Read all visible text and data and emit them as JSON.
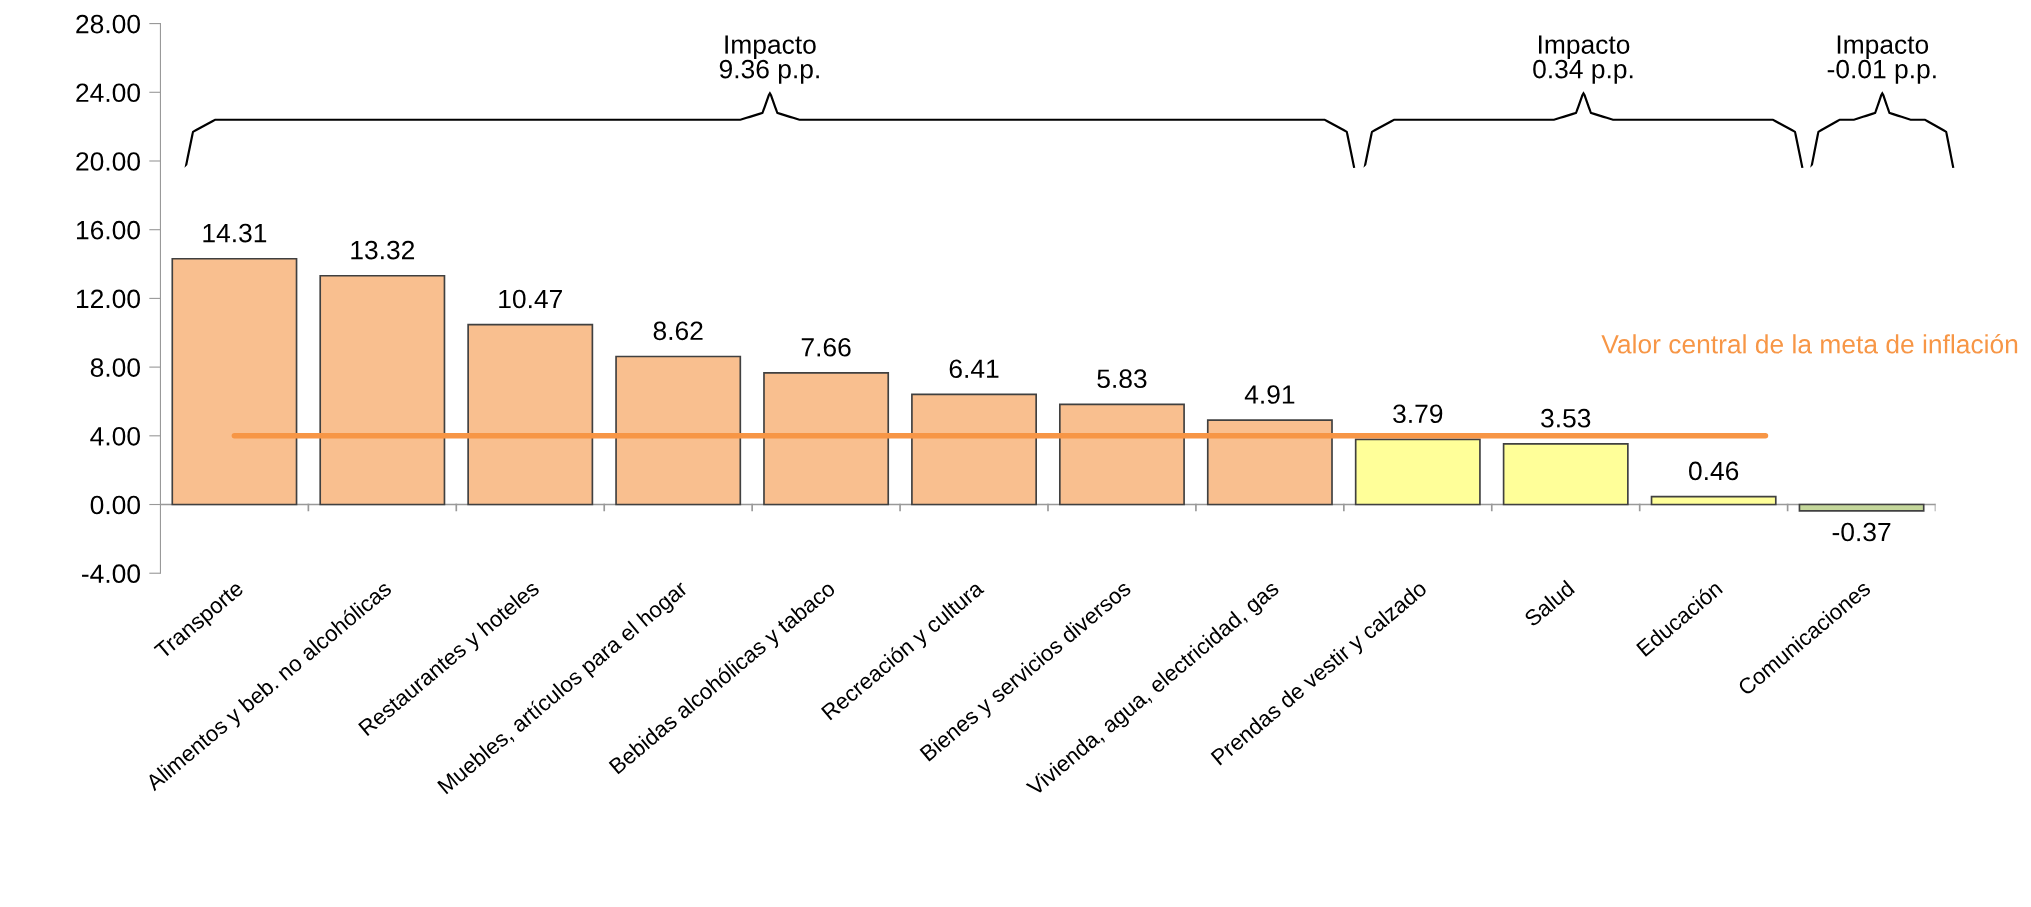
{
  "chart_data": {
    "type": "bar",
    "categories": [
      "Transporte",
      "Alimentos y beb. no alcohólicas",
      "Restaurantes y hoteles",
      "Muebles, artículos para el hogar",
      "Bebidas alcohólicas y tabaco",
      "Recreación y cultura",
      "Bienes y servicios diversos",
      "Vivienda, agua, electricidad, gas",
      "Prendas de vestir y calzado",
      "Salud",
      "Educación",
      "Comunicaciones"
    ],
    "values": [
      14.31,
      13.32,
      10.47,
      8.62,
      7.66,
      6.41,
      5.83,
      4.91,
      3.79,
      3.53,
      0.46,
      -0.37
    ],
    "colors": [
      "#f9bf8f",
      "#f9bf8f",
      "#f9bf8f",
      "#f9bf8f",
      "#f9bf8f",
      "#f9bf8f",
      "#f9bf8f",
      "#f9bf8f",
      "#ffff99",
      "#ffff99",
      "#ffff99",
      "#c4d79b"
    ],
    "data_labels": true,
    "ylim": [
      -4,
      28
    ],
    "yticks": [
      {
        "value": -4,
        "label": "-4.00"
      },
      {
        "value": 0,
        "label": "0.00"
      },
      {
        "value": 4,
        "label": "4.00"
      },
      {
        "value": 8,
        "label": "8.00"
      },
      {
        "value": 12,
        "label": "12.00"
      },
      {
        "value": 16,
        "label": "16.00"
      },
      {
        "value": 20,
        "label": "20.00"
      },
      {
        "value": 24,
        "label": "24.00"
      },
      {
        "value": 28,
        "label": "28.00"
      }
    ],
    "ref_lines": [
      {
        "axis": "y",
        "value": 4,
        "label": "Valor central de la meta de inflación",
        "color": "#f79646"
      }
    ],
    "annotations": [
      "Impacto\n9.36 p.p.",
      "Impacto\n0.34 p.p.",
      "Impacto\n-0.01 p.p."
    ],
    "grid": false,
    "legend": false
  }
}
